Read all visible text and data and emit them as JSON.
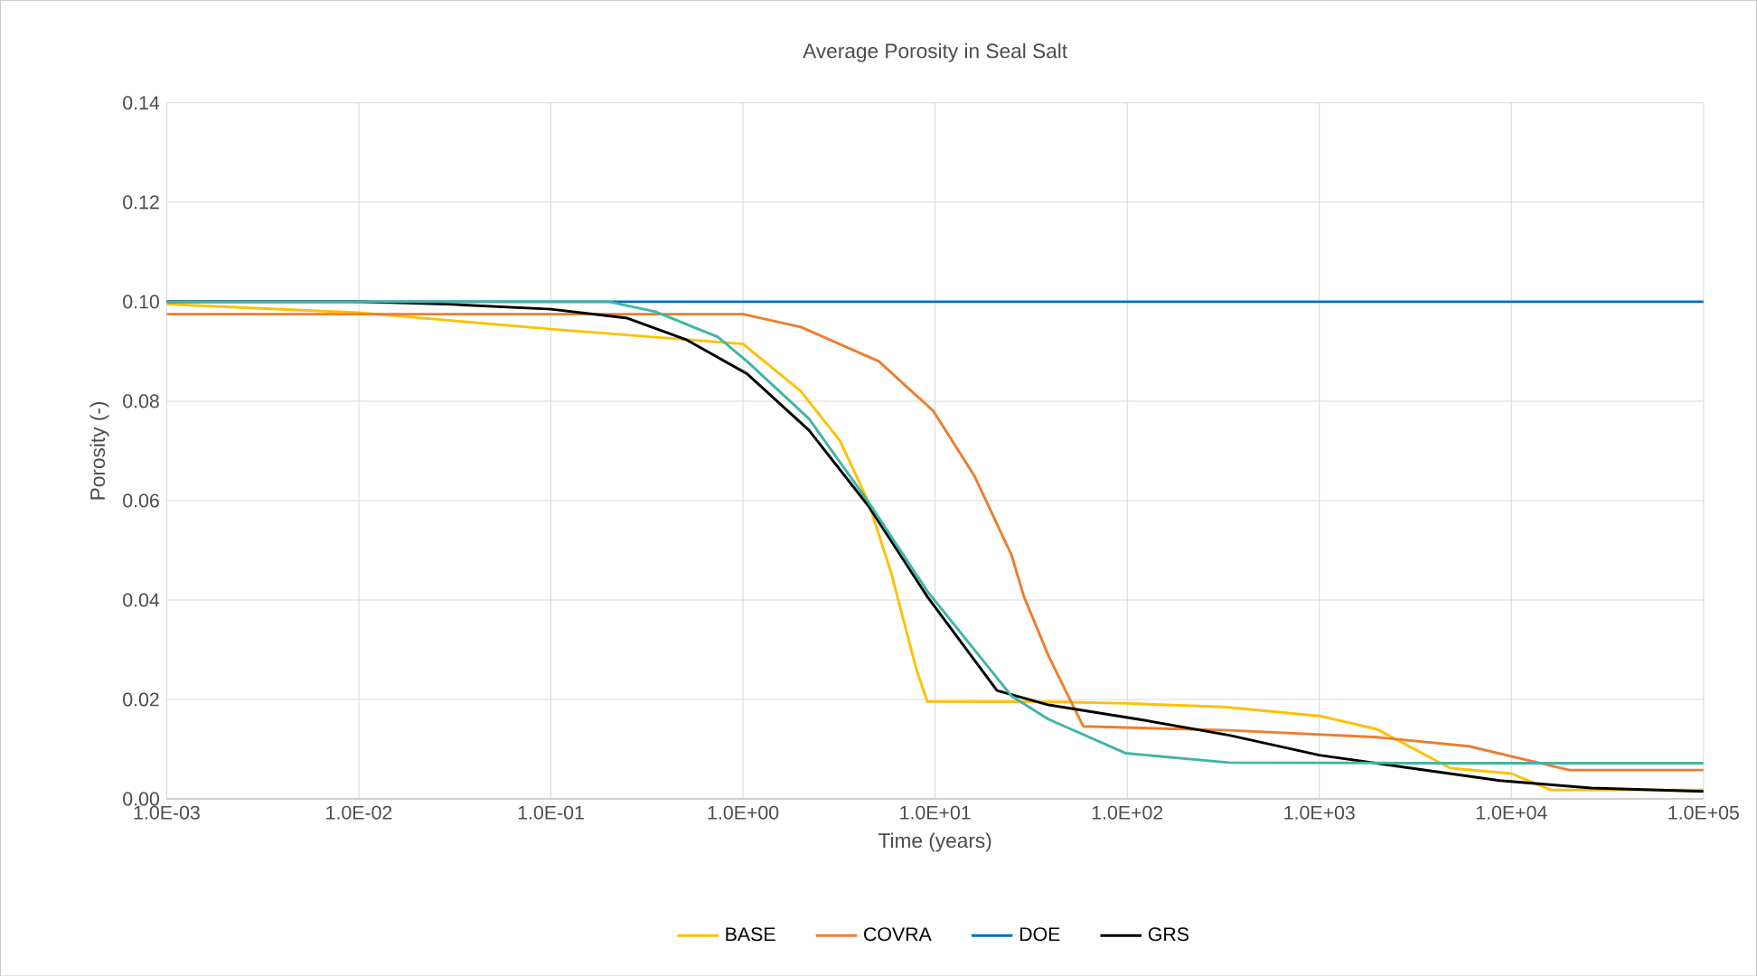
{
  "chart_data": {
    "type": "line",
    "title": "Average Porosity in Seal Salt",
    "xlabel": "Time (years)",
    "ylabel": "Porosity (-)",
    "log": "x",
    "grid": true,
    "legend": "bottom",
    "marker": "none",
    "line_style": "solid",
    "xlim": [
      0.001,
      100000
    ],
    "ylim": [
      0,
      0.14
    ],
    "xticks": [
      {
        "value": 0.001,
        "label": "1.0E-03"
      },
      {
        "value": 0.01,
        "label": "1.0E-02"
      },
      {
        "value": 0.1,
        "label": "1.0E-01"
      },
      {
        "value": 1,
        "label": "1.0E+00"
      },
      {
        "value": 10,
        "label": "1.0E+01"
      },
      {
        "value": 100,
        "label": "1.0E+02"
      },
      {
        "value": 1000,
        "label": "1.0E+03"
      },
      {
        "value": 10000,
        "label": "1.0E+04"
      },
      {
        "value": 100000,
        "label": "1.0E+05"
      }
    ],
    "yticks": [
      {
        "value": 0,
        "label": "0.00"
      },
      {
        "value": 0.02,
        "label": "0.02"
      },
      {
        "value": 0.04,
        "label": "0.04"
      },
      {
        "value": 0.06,
        "label": "0.06"
      },
      {
        "value": 0.08,
        "label": "0.08"
      },
      {
        "value": 0.1,
        "label": "0.10"
      },
      {
        "value": 0.12,
        "label": "0.12"
      },
      {
        "value": 0.14,
        "label": "0.14"
      }
    ],
    "series": [
      {
        "name": "BASE",
        "color": "#ffc000",
        "x": [
          0.001,
          0.01,
          0.1,
          1,
          2,
          3.2,
          4.5,
          5.9,
          8,
          9.1,
          45,
          100,
          316,
          1000,
          2000,
          4800,
          10000,
          16000,
          100000
        ],
        "values": [
          0.0995,
          0.0978,
          0.0945,
          0.0915,
          0.082,
          0.072,
          0.0597,
          0.0455,
          0.026,
          0.0196,
          0.0195,
          0.0192,
          0.0185,
          0.0167,
          0.014,
          0.0062,
          0.0051,
          0.0018,
          0.0018
        ]
      },
      {
        "name": "COVRA",
        "color": "#ed7d31",
        "x": [
          0.001,
          1,
          2,
          5.1,
          9.8,
          16,
          25,
          29,
          39,
          59,
          340,
          2000,
          6000,
          20000,
          100000
        ],
        "values": [
          0.0975,
          0.0975,
          0.0949,
          0.088,
          0.078,
          0.065,
          0.049,
          0.0407,
          0.0287,
          0.0146,
          0.0138,
          0.0124,
          0.0106,
          0.0058,
          0.0058
        ]
      },
      {
        "name": "DOE",
        "color": "#0070c0",
        "x": [
          0.001,
          100000
        ],
        "values": [
          0.1,
          0.1
        ]
      },
      {
        "name": "GRS",
        "color": "#000000",
        "x": [
          0.001,
          0.01,
          0.029,
          0.1,
          0.25,
          0.51,
          1.05,
          2.2,
          4.5,
          9.1,
          21,
          39,
          115,
          340,
          1000,
          3000,
          8700,
          26000,
          100000
        ],
        "values": [
          0.1,
          0.1,
          0.0995,
          0.0985,
          0.0967,
          0.0923,
          0.0855,
          0.0742,
          0.0589,
          0.0407,
          0.0218,
          0.0189,
          0.016,
          0.0128,
          0.0088,
          0.0062,
          0.0037,
          0.0022,
          0.0015
        ]
      },
      {
        "color": "#3fb5a6",
        "x": [
          0.001,
          0.2,
          0.35,
          0.74,
          1.05,
          2.2,
          4.5,
          9.1,
          25,
          39,
          98,
          340,
          3000,
          100000
        ],
        "values": [
          0.1,
          0.1,
          0.098,
          0.0929,
          0.088,
          0.0765,
          0.0597,
          0.0418,
          0.0207,
          0.016,
          0.0092,
          0.0073,
          0.0072,
          0.0072
        ]
      }
    ]
  }
}
